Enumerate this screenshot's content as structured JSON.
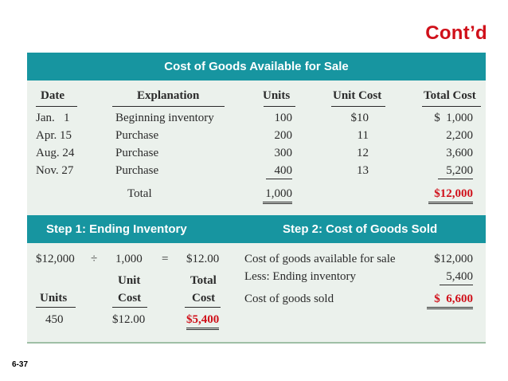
{
  "slide": {
    "contd": "Cont’d",
    "number": "6-37"
  },
  "table": {
    "title": "Cost of Goods Available for Sale",
    "headers": {
      "date": "Date",
      "explanation": "Explanation",
      "units": "Units",
      "unit_cost": "Unit Cost",
      "total_cost": "Total Cost"
    },
    "rows": [
      {
        "date": "Jan.   1",
        "explanation": "Beginning inventory",
        "units": "100",
        "unit_cost": "$10",
        "total_cost": "$  1,000"
      },
      {
        "date": "Apr. 15",
        "explanation": "Purchase",
        "units": "200",
        "unit_cost": "11",
        "total_cost": "2,200"
      },
      {
        "date": "Aug. 24",
        "explanation": "Purchase",
        "units": "300",
        "unit_cost": "12",
        "total_cost": "3,600"
      },
      {
        "date": "Nov. 27",
        "explanation": "Purchase",
        "units": "400",
        "unit_cost": "13",
        "total_cost": "5,200"
      }
    ],
    "total": {
      "label": "Total",
      "units": "1,000",
      "total_cost": "$12,000"
    }
  },
  "step1": {
    "title": "Step 1: Ending Inventory",
    "calc": {
      "a": "$12,000",
      "div": "÷",
      "b": "1,000",
      "eq": "=",
      "c": "$12.00"
    },
    "headers": {
      "units": "Units",
      "unit_cost_1": "Unit",
      "unit_cost_2": "Cost",
      "total_cost_1": "Total",
      "total_cost_2": "Cost"
    },
    "values": {
      "units": "450",
      "unit_cost": "$12.00",
      "total_cost": "$5,400"
    }
  },
  "step2": {
    "title": "Step 2: Cost of Goods Sold",
    "lines": [
      {
        "label": "Cost of goods available for sale",
        "value": "$12,000"
      },
      {
        "label": "Less: Ending inventory",
        "value": "5,400"
      },
      {
        "label": "Cost of goods sold",
        "value": "$  6,600"
      }
    ]
  },
  "colors": {
    "header_bar": "#1795a0",
    "panel": "#ebf1ec",
    "accent_red": "#d0101a"
  }
}
